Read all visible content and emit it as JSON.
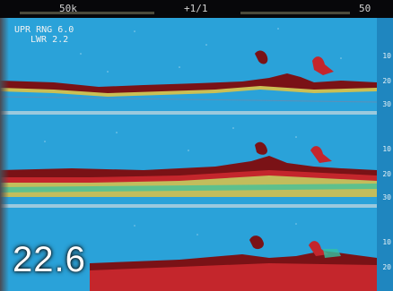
{
  "status_bar": {
    "left_label": "50k",
    "center_label": "+1/1",
    "right_label": "50"
  },
  "range_readout": {
    "upper_label": "UPR RNG",
    "upper_value": "6.0",
    "lower_label": "LWR",
    "lower_value": "2.2"
  },
  "depth_readout": "22.6",
  "depth_scale": [
    "10",
    "20",
    "30",
    "10",
    "20",
    "30",
    "10",
    "20"
  ],
  "colors": {
    "water": "#2aa2d9",
    "bottom_dark": "#7a1216",
    "bottom_red": "#c4262c",
    "bottom_yellow": "#e8c43c"
  }
}
